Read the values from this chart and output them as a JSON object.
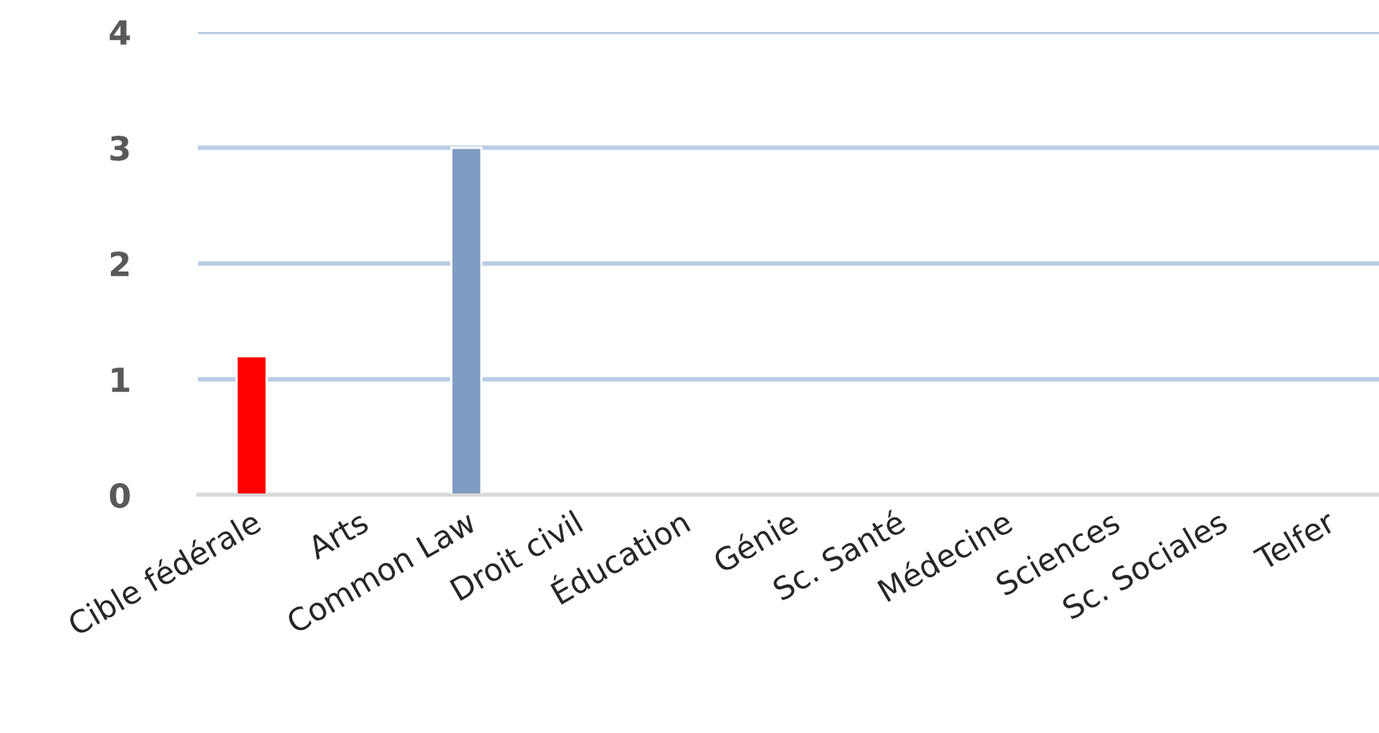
{
  "chart_data": {
    "type": "bar",
    "categories": [
      "Cible fédérale",
      "Arts",
      "Common Law",
      "Droit civil",
      "Éducation",
      "Génie",
      "Sc. Santé",
      "Médecine",
      "Sciences",
      "Sc. Sociales",
      "Telfer"
    ],
    "values": [
      1.2,
      0,
      3,
      0,
      0,
      0,
      0,
      0,
      0,
      0,
      0
    ],
    "colors": [
      "#ff0000",
      null,
      "#7f9cc4",
      null,
      null,
      null,
      null,
      null,
      null,
      null,
      null
    ],
    "ylim": [
      0,
      4
    ],
    "yticks": [
      0,
      1,
      2,
      3,
      4
    ],
    "grid": "y"
  }
}
